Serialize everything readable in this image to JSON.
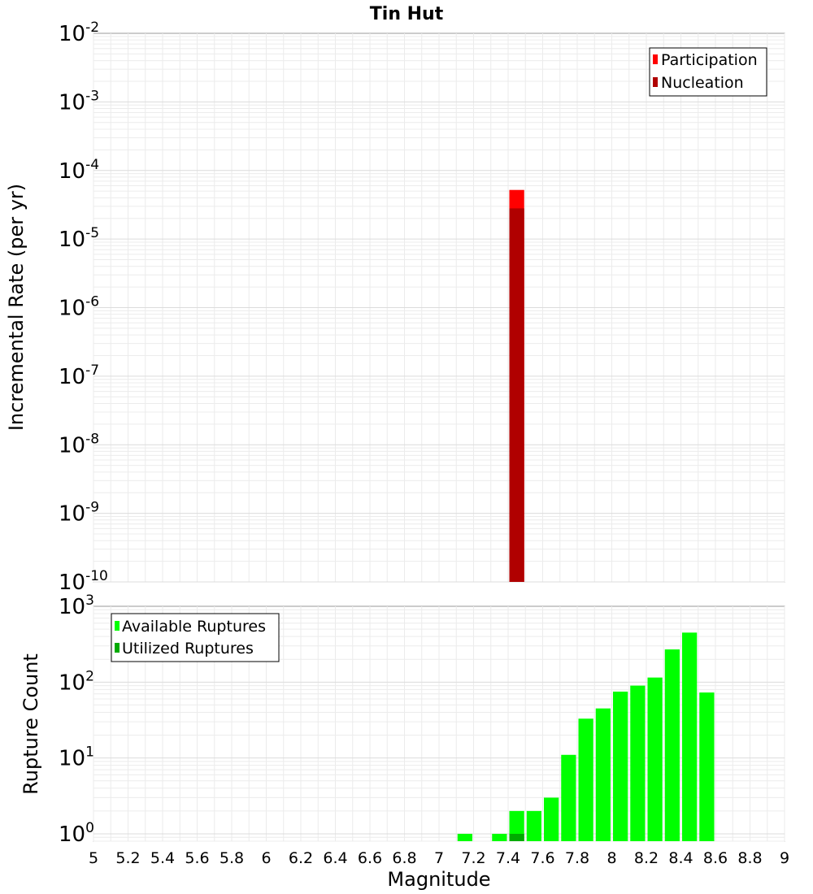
{
  "title": "Tin Hut",
  "chart_data": [
    {
      "type": "bar",
      "title": "Tin Hut",
      "xlabel": "Magnitude",
      "ylabel": "Incremental Rate (per yr)",
      "xlim": [
        5,
        9
      ],
      "ylim": [
        1e-10,
        0.01
      ],
      "yscale": "log",
      "grid": true,
      "legend_position": "top-right",
      "bin_width": 0.1,
      "series": [
        {
          "name": "Participation",
          "color": "#ff0000",
          "bars": [
            {
              "x": 7.45,
              "y": 5.2e-05
            }
          ]
        },
        {
          "name": "Nucleation",
          "color": "#b00000",
          "bars": [
            {
              "x": 7.45,
              "y": 2.8e-05
            }
          ]
        }
      ]
    },
    {
      "type": "bar",
      "title": "",
      "xlabel": "Magnitude",
      "ylabel": "Rupture Count",
      "xlim": [
        5,
        9
      ],
      "ylim": [
        0.8,
        1000
      ],
      "yscale": "log",
      "grid": true,
      "legend_position": "top-left",
      "bin_width": 0.1,
      "series": [
        {
          "name": "Available Ruptures",
          "color": "#00ff00",
          "bars": [
            {
              "x": 7.15,
              "y": 1
            },
            {
              "x": 7.35,
              "y": 1
            },
            {
              "x": 7.45,
              "y": 2
            },
            {
              "x": 7.55,
              "y": 2
            },
            {
              "x": 7.65,
              "y": 3
            },
            {
              "x": 7.75,
              "y": 11
            },
            {
              "x": 7.85,
              "y": 33
            },
            {
              "x": 7.95,
              "y": 45
            },
            {
              "x": 8.05,
              "y": 75
            },
            {
              "x": 8.15,
              "y": 90
            },
            {
              "x": 8.25,
              "y": 115
            },
            {
              "x": 8.35,
              "y": 270
            },
            {
              "x": 8.45,
              "y": 450
            },
            {
              "x": 8.55,
              "y": 73
            }
          ]
        },
        {
          "name": "Utilized Ruptures",
          "color": "#00aa00",
          "bars": [
            {
              "x": 7.45,
              "y": 1
            }
          ]
        }
      ]
    }
  ],
  "x_ticks": [
    "5",
    "5.2",
    "5.4",
    "5.6",
    "5.8",
    "6",
    "6.2",
    "6.4",
    "6.6",
    "6.8",
    "7",
    "7.2",
    "7.4",
    "7.6",
    "7.8",
    "8",
    "8.2",
    "8.4",
    "8.6",
    "8.8",
    "9"
  ],
  "top_y_ticks": [
    {
      "base": "10",
      "exp": "-2"
    },
    {
      "base": "10",
      "exp": "-3"
    },
    {
      "base": "10",
      "exp": "-4"
    },
    {
      "base": "10",
      "exp": "-5"
    },
    {
      "base": "10",
      "exp": "-6"
    },
    {
      "base": "10",
      "exp": "-7"
    },
    {
      "base": "10",
      "exp": "-8"
    },
    {
      "base": "10",
      "exp": "-9"
    },
    {
      "base": "10",
      "exp": "-10"
    }
  ],
  "bottom_y_ticks": [
    {
      "base": "10",
      "exp": "3"
    },
    {
      "base": "10",
      "exp": "2"
    },
    {
      "base": "10",
      "exp": "1"
    },
    {
      "base": "10",
      "exp": "0"
    }
  ]
}
